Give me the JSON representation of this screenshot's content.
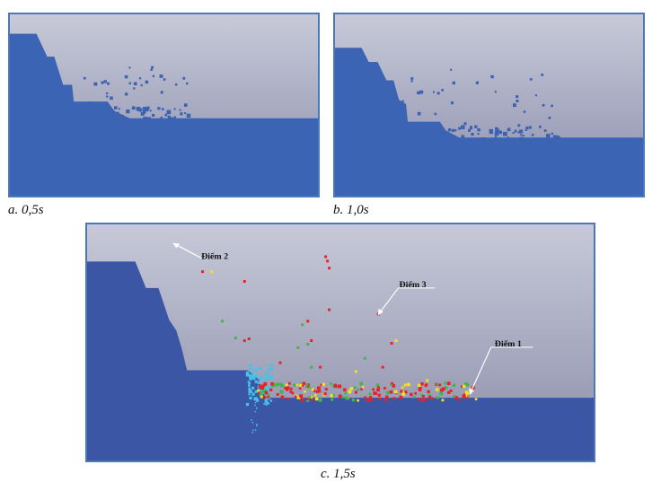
{
  "figures": [
    {
      "id": "a",
      "caption": "a. 0,5s"
    },
    {
      "id": "b",
      "caption": "b. 1,0s"
    },
    {
      "id": "c",
      "caption": "c. 1,5s"
    }
  ],
  "annotations": [
    {
      "label": "Điểm 2"
    },
    {
      "label": "Điểm 3"
    },
    {
      "label": "Điểm 1"
    }
  ],
  "colors": {
    "sky_top": "#c6c8d8",
    "sky_bottom": "#8b8fae",
    "terrain": "#3b64b4",
    "terrain_c": "#3a56a5",
    "debris_blue": "#3d62b0",
    "particle_red": "#e8202a",
    "particle_yellow": "#f4e21c",
    "particle_green": "#3fb54a",
    "particle_cyan": "#46c1e8",
    "border": "#4a78b8"
  }
}
